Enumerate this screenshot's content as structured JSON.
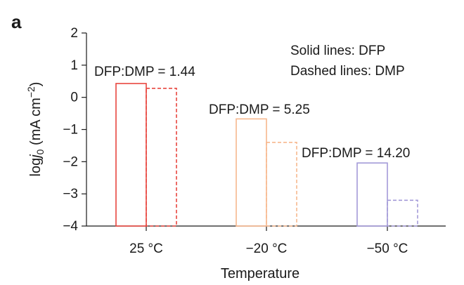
{
  "panel_label": "a",
  "chart_data": {
    "type": "bar",
    "xlabel": "Temperature",
    "ylabel": {
      "prefix": "log",
      "var": "j",
      "sub": "0",
      "unit": " (mA cm",
      "sup": "−2",
      "close": ")"
    },
    "ylim": [
      -4,
      2
    ],
    "yticks": [
      "2",
      "1",
      "0",
      "−1",
      "−2",
      "−3",
      "−4"
    ],
    "ytick_values": [
      2,
      1,
      0,
      -1,
      -2,
      -3,
      -4
    ],
    "categories": [
      "25 °C",
      "−20 °C",
      "−50 °C"
    ],
    "series": [
      {
        "name": "DFP",
        "line_style": "solid",
        "values": [
          0.43,
          -0.67,
          -2.04
        ]
      },
      {
        "name": "DMP",
        "line_style": "dashed",
        "values": [
          0.28,
          -1.4,
          -3.2
        ]
      }
    ],
    "category_colors": [
      "#e8463f",
      "#f7b88e",
      "#a39ad8"
    ],
    "bar_annotations": [
      "DFP:DMP = 1.44",
      "DFP:DMP = 5.25",
      "DFP:DMP = 14.20"
    ],
    "legend": [
      "Solid lines: DFP",
      "Dashed lines: DMP"
    ]
  }
}
